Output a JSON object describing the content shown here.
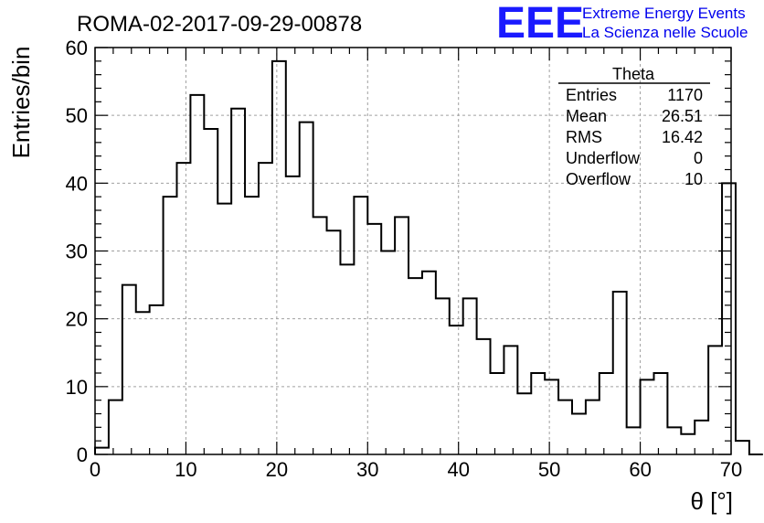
{
  "chart_data": {
    "type": "bar",
    "title": "ROMA-02-2017-09-29-00878",
    "xlabel": "θ [°]",
    "ylabel": "Entries/bin",
    "xlim": [
      0,
      70
    ],
    "ylim": [
      0,
      60
    ],
    "xticks": [
      0,
      10,
      20,
      30,
      40,
      50,
      60,
      70
    ],
    "yticks": [
      0,
      10,
      20,
      30,
      40,
      50,
      60
    ],
    "grid": true,
    "bin_edges_start": 0,
    "bin_width": 1.5,
    "values": [
      1,
      8,
      25,
      21,
      22,
      38,
      43,
      53,
      48,
      37,
      51,
      38,
      43,
      58,
      41,
      49,
      35,
      33,
      28,
      38,
      34,
      30,
      35,
      26,
      27,
      23,
      19,
      23,
      17,
      12,
      16,
      9,
      12,
      11,
      8,
      6,
      8,
      12,
      24,
      4,
      11,
      12,
      4,
      3,
      5,
      16,
      40,
      2,
      0
    ]
  },
  "stats": {
    "name": "Theta",
    "rows": [
      {
        "label": "Entries",
        "value": "1170"
      },
      {
        "label": "Mean",
        "value": "26.51"
      },
      {
        "label": "RMS",
        "value": "16.42"
      },
      {
        "label": "Underflow",
        "value": "0"
      },
      {
        "label": "Overflow",
        "value": "10"
      }
    ]
  },
  "logo": {
    "mark": "EEE",
    "line1": "Extreme Energy Events",
    "line2": "La Scienza nelle Scuole",
    "color": "#0000ee"
  }
}
